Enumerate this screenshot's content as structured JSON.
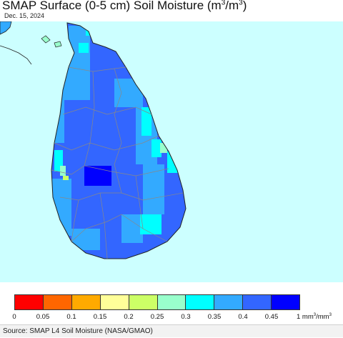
{
  "header": {
    "title_prefix": "SMAP Surface (0-5 cm) Soil Moisture (m",
    "title_exp1": "3",
    "title_mid": "/m",
    "title_exp2": "3",
    "title_suffix": ")",
    "date": "Dec. 15, 2024"
  },
  "map": {
    "region": "Sri Lanka",
    "ocean_color": "#ccffff",
    "land_outline_color": "#222222",
    "district_border_color": "#888888",
    "dominant_color": "#3366ff"
  },
  "legend": {
    "colors": [
      "#ff0000",
      "#ff6600",
      "#ffaa00",
      "#ffff99",
      "#ccff66",
      "#99ffcc",
      "#00ffff",
      "#33aaff",
      "#3366ff",
      "#0000ff"
    ],
    "ticks": [
      "0",
      "0.05",
      "0.1",
      "0.15",
      "0.2",
      "0.25",
      "0.3",
      "0.35",
      "0.4",
      "0.45"
    ],
    "unit_prefix": "1 mm",
    "unit_exp1": "3",
    "unit_mid": "/mm",
    "unit_exp2": "3"
  },
  "footer": {
    "source": "Source: SMAP L4 Soil Moisture (NASA/GMAO)"
  }
}
